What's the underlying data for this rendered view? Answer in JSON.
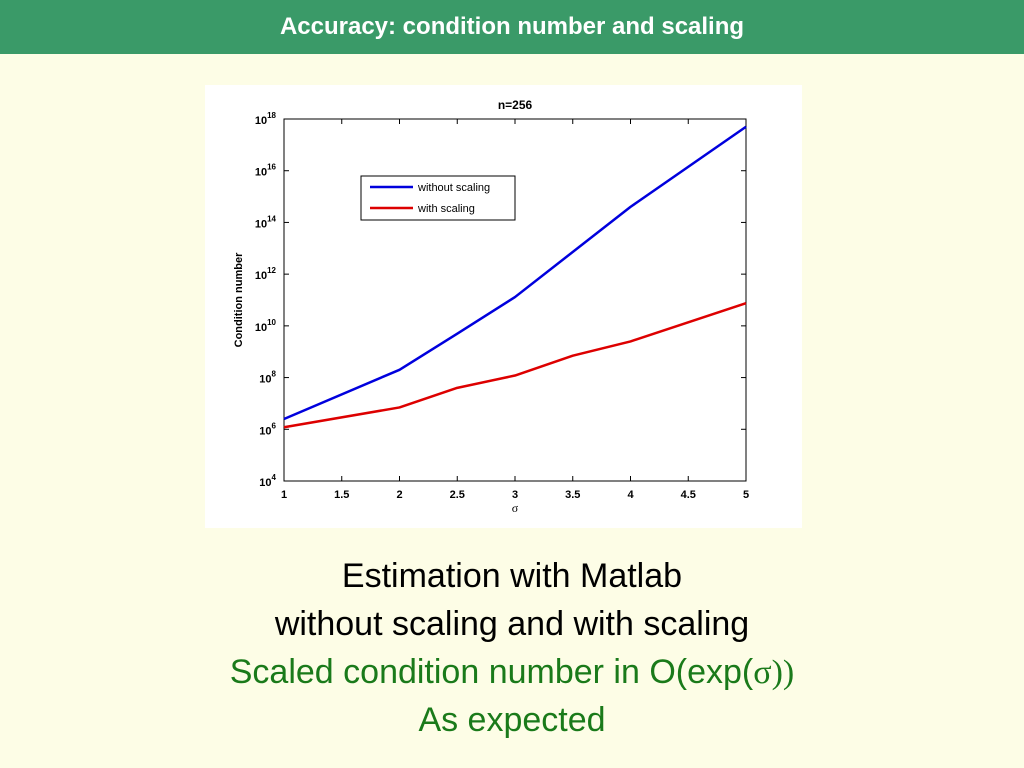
{
  "slide": {
    "title": "Accuracy: condition number and scaling",
    "title_bar_color": "#3a9a68",
    "background_color": "#fdfde6"
  },
  "caption": {
    "line1": "Estimation with Matlab",
    "line2": "without scaling and with scaling",
    "line3_prefix": "Scaled condition number in O(exp(",
    "line3_sigma": "σ))",
    "line4": "As expected",
    "black_color": "#000000",
    "green_color": "#1a7a1a"
  },
  "chart_data": {
    "type": "line",
    "title": "n=256",
    "xlabel": "σ",
    "ylabel": "Condition number",
    "xlim": [
      1,
      5
    ],
    "ylim": [
      10000,
      1e+18
    ],
    "yscale": "log",
    "x_ticks": [
      "1",
      "1.5",
      "2",
      "2.5",
      "3",
      "3.5",
      "4",
      "4.5",
      "5"
    ],
    "y_ticks": [
      {
        "value": 10000.0,
        "base": "10",
        "exp": "4"
      },
      {
        "value": 1000000.0,
        "base": "10",
        "exp": "6"
      },
      {
        "value": 100000000.0,
        "base": "10",
        "exp": "8"
      },
      {
        "value": 10000000000.0,
        "base": "10",
        "exp": "10"
      },
      {
        "value": 1000000000000.0,
        "base": "10",
        "exp": "12"
      },
      {
        "value": 100000000000000.0,
        "base": "10",
        "exp": "14"
      },
      {
        "value": 1e+16,
        "base": "10",
        "exp": "16"
      },
      {
        "value": 1e+18,
        "base": "10",
        "exp": "18"
      }
    ],
    "legend_position": "upper-left",
    "grid": false,
    "series": [
      {
        "name": "without scaling",
        "color": "#0000dd",
        "x": [
          1,
          2,
          2.5,
          3,
          4,
          5
        ],
        "y": [
          2500000.0,
          200000000.0,
          5000000000.0,
          130000000000.0,
          400000000000000.0,
          5e+17
        ]
      },
      {
        "name": "with scaling",
        "color": "#dd0000",
        "x": [
          1,
          2,
          2.5,
          3,
          3.5,
          4,
          5
        ],
        "y": [
          1200000.0,
          7000000.0,
          40000000.0,
          120000000.0,
          700000000.0,
          2500000000.0,
          75000000000.0
        ]
      }
    ]
  }
}
